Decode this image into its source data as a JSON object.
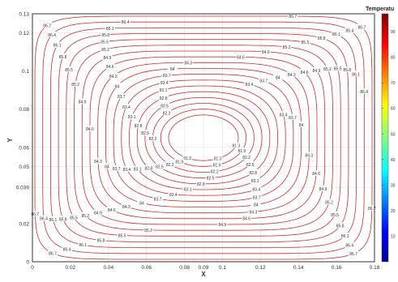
{
  "chart_data": {
    "type": "contour",
    "xlabel": "X",
    "ylabel": "Y",
    "xlim": [
      0,
      0.18
    ],
    "ylim": [
      0,
      0.13
    ],
    "x_ticks": [
      "0",
      "0.02",
      "0.04",
      "0.06",
      "0.08",
      "0.09",
      "0.1",
      "0.12",
      "0.14",
      "0.16",
      "0.18"
    ],
    "x_tick_values": [
      0,
      0.02,
      0.04,
      0.06,
      0.08,
      0.09,
      0.1,
      0.12,
      0.14,
      0.16,
      0.18
    ],
    "y_ticks": [
      "0",
      "0.02",
      "0.039",
      "0.05",
      "0.06",
      "0.08",
      "0.1",
      "0.12",
      "0.13"
    ],
    "y_tick_values": [
      0,
      0.02,
      0.039,
      0.05,
      0.06,
      0.08,
      0.1,
      0.12,
      0.13
    ],
    "grid": true,
    "line_color": "#d62a2a",
    "center": [
      0.09,
      0.065
    ],
    "levels": [
      81.3,
      81.9,
      82.2,
      82.5,
      82.8,
      83.1,
      83.4,
      83.7,
      84.0,
      84.3,
      84.6,
      84.9,
      85.2,
      85.5,
      85.8,
      86.1,
      86.4,
      86.7
    ],
    "level_labels": [
      "81.3",
      "81.9",
      "82.2",
      "82.5",
      "82.8",
      "83.1",
      "83.4",
      "83.7",
      "84",
      "84.3",
      "84.6",
      "84.9",
      "85.2",
      "85.5",
      "85.8",
      "86.1",
      "86.4",
      "86.7"
    ],
    "colorbar": {
      "title": "Temperatu",
      "ticks": [
        "90",
        "80",
        "70",
        "60",
        "50",
        "40",
        "30",
        "20",
        "10"
      ],
      "tick_values": [
        90,
        80,
        70,
        60,
        50,
        40,
        30,
        20,
        10
      ],
      "min": 0,
      "max": 97
    }
  }
}
